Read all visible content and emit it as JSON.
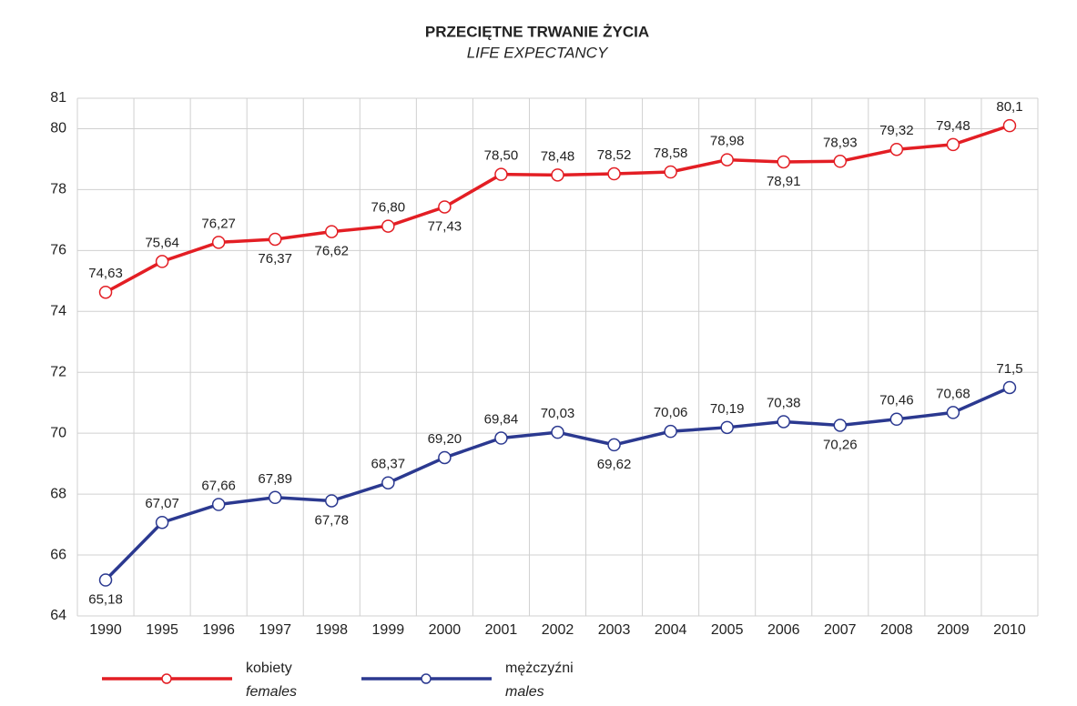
{
  "chart_data": {
    "type": "line",
    "title": "PRZECIĘTNE TRWANIE ŻYCIA",
    "subtitle": "LIFE EXPECTANCY",
    "categories": [
      "1990",
      "1995",
      "1996",
      "1997",
      "1998",
      "1999",
      "2000",
      "2001",
      "2002",
      "2003",
      "2004",
      "2005",
      "2006",
      "2007",
      "2008",
      "2009",
      "2010"
    ],
    "series": [
      {
        "name": "kobiety",
        "name_en": "females",
        "color": "#e31e24",
        "values": [
          74.63,
          75.64,
          76.27,
          76.37,
          76.62,
          76.8,
          77.43,
          78.5,
          78.48,
          78.52,
          78.58,
          78.98,
          78.91,
          78.93,
          79.32,
          79.48,
          80.1
        ],
        "value_labels": [
          "74,63",
          "75,64",
          "76,27",
          "76,37",
          "76,62",
          "76,80",
          "77,43",
          "78,50",
          "78,48",
          "78,52",
          "78,58",
          "78,98",
          "78,91",
          "78,93",
          "79,32",
          "79,48",
          "80,1"
        ]
      },
      {
        "name": "mężczyźni",
        "name_en": "males",
        "color": "#2b3990",
        "values": [
          65.18,
          67.07,
          67.66,
          67.89,
          67.78,
          68.37,
          69.2,
          69.84,
          70.03,
          69.62,
          70.06,
          70.19,
          70.38,
          70.26,
          70.46,
          70.68,
          71.5
        ],
        "value_labels": [
          "65,18",
          "67,07",
          "67,66",
          "67,89",
          "67,78",
          "68,37",
          "69,20",
          "69,84",
          "70,03",
          "69,62",
          "70,06",
          "70,19",
          "70,38",
          "70,26",
          "70,46",
          "70,68",
          "71,5"
        ]
      }
    ],
    "ylim": [
      64,
      81
    ],
    "yticks": [
      64,
      66,
      68,
      70,
      72,
      74,
      76,
      78,
      80,
      81
    ],
    "grid": true
  }
}
